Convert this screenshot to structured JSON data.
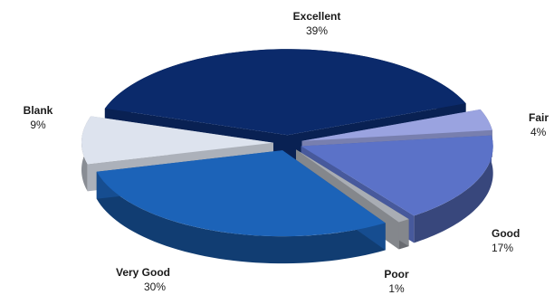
{
  "chart_data": {
    "type": "pie",
    "style": "3d-exploded",
    "slices": [
      {
        "label": "Excellent",
        "value": 39,
        "percent_label": "39%",
        "color": "#0b2a6b"
      },
      {
        "label": "Fair",
        "value": 4,
        "percent_label": "4%",
        "color": "#9aa3e0"
      },
      {
        "label": "Good",
        "value": 17,
        "percent_label": "17%",
        "color": "#5b72c8"
      },
      {
        "label": "Poor",
        "value": 1,
        "percent_label": "1%",
        "color": "#a9adb4"
      },
      {
        "label": "Very Good",
        "value": 30,
        "percent_label": "30%",
        "color": "#1c63b8"
      },
      {
        "label": "Blank",
        "value": 9,
        "percent_label": "9%",
        "color": "#dde3ee"
      }
    ]
  }
}
